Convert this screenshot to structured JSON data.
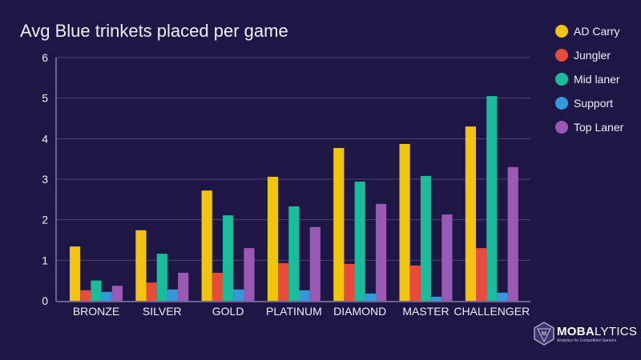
{
  "chart_data": {
    "type": "bar",
    "title": "Avg Blue trinkets placed per game",
    "categories": [
      "BRONZE",
      "SILVER",
      "GOLD",
      "PLATINUM",
      "DIAMOND",
      "MASTER",
      "CHALLENGER"
    ],
    "series": [
      {
        "name": "AD Carry",
        "color": "#f1c40f",
        "values": [
          1.34,
          1.74,
          2.72,
          3.06,
          3.77,
          3.87,
          4.3
        ]
      },
      {
        "name": "Jungler",
        "color": "#e74c3c",
        "values": [
          0.26,
          0.45,
          0.69,
          0.93,
          0.91,
          0.87,
          1.3
        ]
      },
      {
        "name": "Mid laner",
        "color": "#1abc9c",
        "values": [
          0.5,
          1.16,
          2.11,
          2.33,
          2.94,
          3.08,
          5.05
        ]
      },
      {
        "name": "Support",
        "color": "#3498db",
        "values": [
          0.22,
          0.28,
          0.28,
          0.26,
          0.18,
          0.1,
          0.2
        ]
      },
      {
        "name": "Top Laner",
        "color": "#9b59b6",
        "values": [
          0.37,
          0.69,
          1.3,
          1.82,
          2.39,
          2.13,
          3.3
        ]
      }
    ],
    "ylim": [
      0,
      6
    ],
    "yticks": [
      "0",
      "1",
      "2",
      "3",
      "4",
      "5",
      "6"
    ],
    "grid": true,
    "legend_position": "right"
  },
  "logo": {
    "name_bold": "MOBA",
    "name_rest": "LYTICS",
    "tagline": "Analytics for Competitive Gamers"
  }
}
